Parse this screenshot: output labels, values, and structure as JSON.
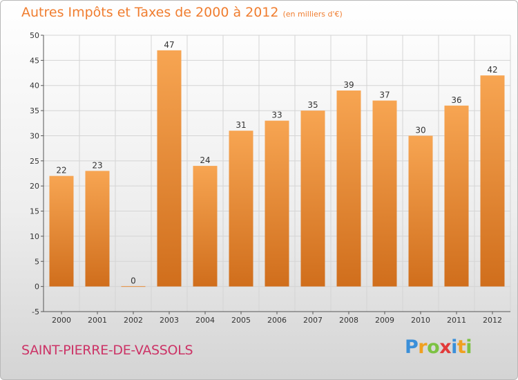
{
  "header": {
    "title": "Autres Impôts et Taxes de 2000 à 2012",
    "unit": "(en milliers d'€)"
  },
  "footer": {
    "place": "SAINT-PIERRE-DE-VASSOLS",
    "brand": [
      "P",
      "r",
      "o",
      "x",
      "i",
      "t",
      "i"
    ],
    "brand_colors": [
      "#3a8fd9",
      "#f0a020",
      "#7cc243",
      "#e23a3a",
      "#3a8fd9",
      "#f0a020",
      "#7cc243"
    ]
  },
  "colors": {
    "bar_top": "#f7a552",
    "bar_bottom": "#d06e1c",
    "title": "#f07d2f",
    "place": "#cc3366",
    "grid": "#d4d4d4"
  },
  "chart_data": {
    "type": "bar",
    "categories": [
      "2000",
      "2001",
      "2002",
      "2003",
      "2004",
      "2005",
      "2006",
      "2007",
      "2008",
      "2009",
      "2010",
      "2011",
      "2012"
    ],
    "values": [
      22,
      23,
      0,
      47,
      24,
      31,
      33,
      35,
      39,
      37,
      30,
      36,
      42
    ],
    "data_labels": [
      "22",
      "23",
      "0",
      "47",
      "24",
      "31",
      "33",
      "35",
      "39",
      "37",
      "30",
      "36",
      "42"
    ],
    "y_ticks": [
      "-5",
      "0",
      "5",
      "10",
      "15",
      "20",
      "25",
      "30",
      "35",
      "40",
      "45",
      "50"
    ],
    "ylim": [
      -5,
      50
    ],
    "grid": true,
    "title": "Autres Impôts et Taxes de 2000 à 2012",
    "xlabel": "",
    "ylabel": ""
  }
}
